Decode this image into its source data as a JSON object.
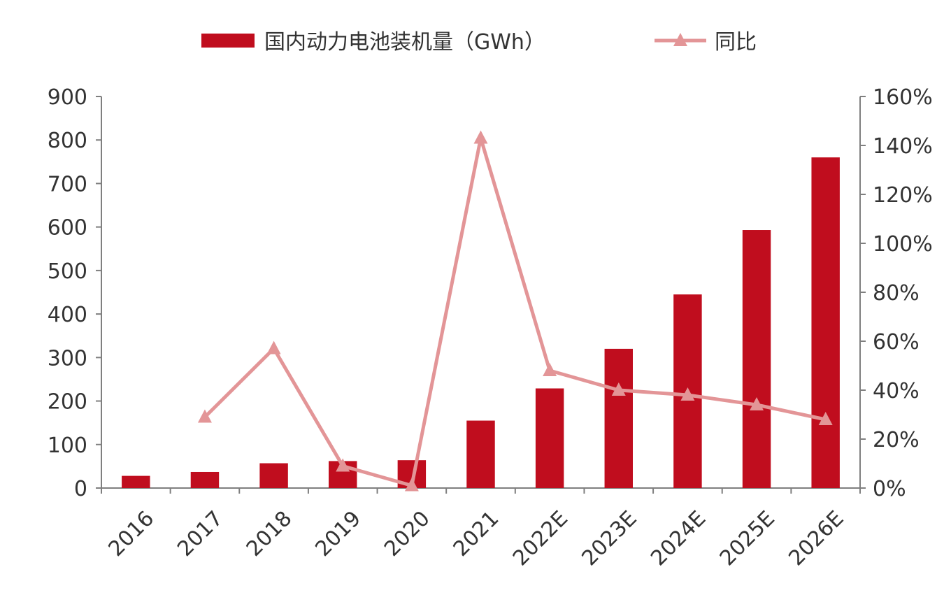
{
  "chart_data": {
    "type": "bar",
    "title": "",
    "categories": [
      "2016",
      "2017",
      "2018",
      "2019",
      "2020",
      "2021",
      "2022E",
      "2023E",
      "2024E",
      "2025E",
      "2026E"
    ],
    "series": [
      {
        "name": "国内动力电池装机量（GWh）",
        "type": "bar",
        "axis": "left",
        "color": "#c00d1e",
        "values": [
          28,
          37,
          57,
          62,
          64,
          155,
          229,
          320,
          445,
          593,
          760
        ]
      },
      {
        "name": "同比",
        "type": "line",
        "axis": "right",
        "color": "#e39597",
        "marker": "triangle",
        "values": [
          null,
          0.29,
          0.57,
          0.09,
          0.01,
          1.43,
          0.48,
          0.4,
          0.38,
          0.34,
          0.28
        ]
      }
    ],
    "y_left": {
      "ylim": [
        0,
        900
      ],
      "ticks": [
        "0",
        "100",
        "200",
        "300",
        "400",
        "500",
        "600",
        "700",
        "800",
        "900"
      ]
    },
    "y_right": {
      "ylim": [
        0,
        1.6
      ],
      "ticks": [
        "0%",
        "20%",
        "40%",
        "60%",
        "80%",
        "100%",
        "120%",
        "140%",
        "160%"
      ]
    },
    "legend_position": "top-center",
    "grid": false
  }
}
